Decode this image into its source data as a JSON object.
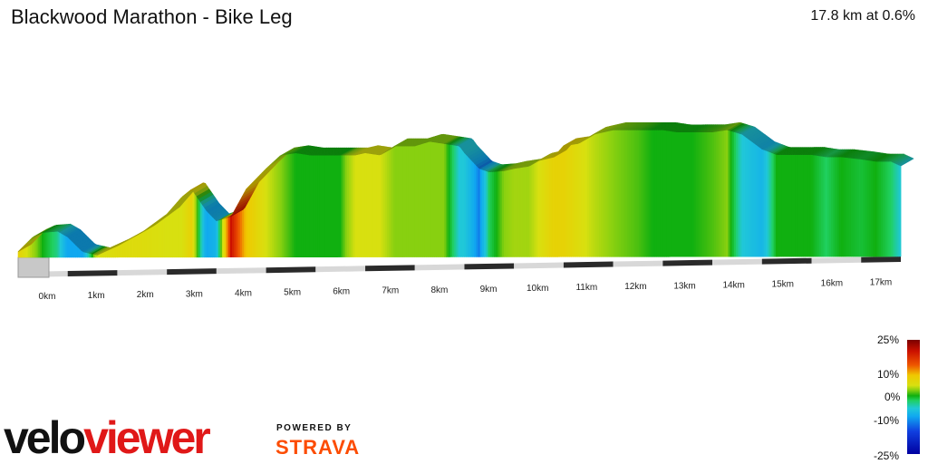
{
  "header": {
    "title": "Blackwood Marathon - Bike Leg",
    "summary": "17.8 km at 0.6%"
  },
  "legend": {
    "labels": [
      "25%",
      "10%",
      "0%",
      "-10%",
      "-25%"
    ]
  },
  "branding": {
    "logo_text": "veloviewer",
    "powered_by": "POWERED BY",
    "strava": "STRAVA"
  },
  "chart_data": {
    "type": "area",
    "title": "Blackwood Marathon - Bike Leg",
    "xlabel": "",
    "ylabel": "",
    "x_unit": "km",
    "total_distance_km": 17.8,
    "average_gradient_pct": 0.6,
    "x_ticks": [
      "0km",
      "1km",
      "2km",
      "3km",
      "4km",
      "5km",
      "6km",
      "7km",
      "8km",
      "9km",
      "10km",
      "11km",
      "12km",
      "13km",
      "14km",
      "15km",
      "16km",
      "17km"
    ],
    "elevation_relative": {
      "x_km": [
        0,
        0.3,
        0.5,
        0.8,
        1.0,
        1.3,
        1.6,
        2.0,
        2.5,
        3.0,
        3.3,
        3.5,
        3.8,
        4.0,
        4.3,
        4.6,
        5.0,
        5.3,
        5.6,
        5.9,
        6.2,
        6.5,
        6.8,
        7.0,
        7.3,
        7.6,
        8.0,
        8.3,
        8.6,
        8.9,
        9.0,
        9.3,
        9.5,
        9.8,
        10.0,
        10.3,
        10.5,
        10.8,
        11.0,
        11.3,
        11.6,
        12.0,
        12.5,
        12.8,
        13.0,
        13.3,
        13.6,
        14.0,
        14.3,
        14.6,
        15.0,
        15.3,
        15.6,
        16.0,
        16.3,
        16.6,
        17.0,
        17.3,
        17.6,
        17.8
      ],
      "h": [
        5,
        18,
        22,
        23,
        18,
        5,
        2,
        10,
        22,
        38,
        53,
        60,
        41,
        32,
        36,
        60,
        78,
        90,
        92,
        90,
        90,
        90,
        90,
        92,
        90,
        98,
        98,
        102,
        100,
        98,
        92,
        78,
        75,
        76,
        78,
        80,
        85,
        88,
        98,
        100,
        108,
        112,
        112,
        112,
        112,
        110,
        110,
        110,
        112,
        108,
        95,
        90,
        90,
        90,
        88,
        88,
        86,
        84,
        84,
        80
      ],
      "gradient_pct": [
        8,
        3,
        0,
        -3,
        -10,
        -10,
        5,
        6,
        6,
        5,
        5,
        8,
        -10,
        -8,
        20,
        10,
        5,
        2,
        0,
        0,
        0,
        0,
        5,
        5,
        5,
        2,
        2,
        2,
        2,
        -5,
        -5,
        -12,
        -2,
        2,
        3,
        3,
        5,
        8,
        8,
        6,
        4,
        2,
        1,
        0,
        0,
        0,
        0,
        1,
        2,
        -5,
        -8,
        0,
        0,
        0,
        -2,
        0,
        -1,
        0,
        -2,
        -5
      ]
    },
    "colorscale": {
      "min_pct": -25,
      "max_pct": 25,
      "ticks_pct": [
        25,
        10,
        0,
        -10,
        -25
      ]
    },
    "grid": false,
    "legend_position": "bottom-right"
  }
}
